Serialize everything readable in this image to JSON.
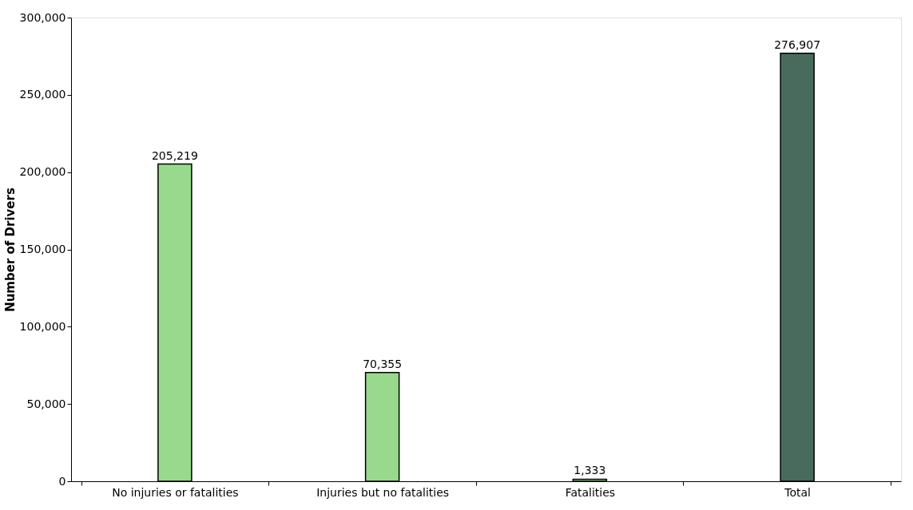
{
  "chart_data": {
    "type": "bar",
    "ylabel": "Number of Drivers",
    "categories": [
      "No injuries or fatalities",
      "Injuries but no fatalities",
      "Fatalities",
      "Total"
    ],
    "values": [
      205219,
      70355,
      1333,
      276907
    ],
    "value_labels": [
      "205,219",
      "70,355",
      "1,333",
      "276,907"
    ],
    "colors": [
      "#98d98e",
      "#98d98e",
      "#98d98e",
      "#486b5e"
    ],
    "ylim": [
      0,
      300000
    ],
    "yticks": [
      0,
      {
        "value": 50000,
        "label": "50,000"
      },
      {
        "value": 100000,
        "label": "100,000"
      },
      {
        "value": 150000,
        "label": "150,000"
      },
      {
        "value": 200000,
        "label": "200,000"
      },
      {
        "value": 250000,
        "label": "250,000"
      },
      {
        "value": 300000,
        "label": "300,000"
      }
    ],
    "grid": false
  }
}
